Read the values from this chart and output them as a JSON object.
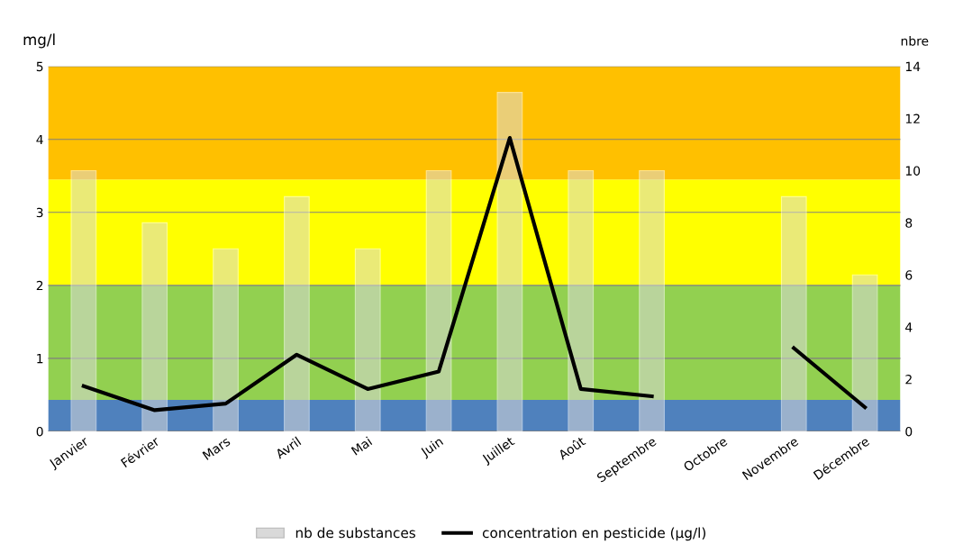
{
  "chart_data": {
    "type": "bar",
    "ylabel": "mg/l",
    "y2label": "nbre",
    "categories": [
      "Janvier",
      "Février",
      "Mars",
      "Avril",
      "Mai",
      "Juin",
      "Juillet",
      "Août",
      "Septembre",
      "Octobre",
      "Novembre",
      "Décembre"
    ],
    "series": [
      {
        "name": "nb de substances",
        "axis": "y2",
        "color": "#d9d9d9",
        "values": [
          10,
          8,
          7,
          9,
          7,
          10,
          13,
          10,
          10,
          null,
          9,
          6
        ]
      },
      {
        "name": "concentration en pesticide (µg/l)",
        "type": "line",
        "axis": "y",
        "color": "#000000",
        "values": [
          0.62,
          0.29,
          0.38,
          1.05,
          0.58,
          0.82,
          4.02,
          0.58,
          0.48,
          null,
          1.14,
          0.33
        ]
      }
    ],
    "ylim": [
      0,
      5
    ],
    "yticks": [
      0,
      1,
      2,
      3,
      4,
      5
    ],
    "y2lim": [
      0,
      14
    ],
    "y2ticks": [
      0,
      2,
      4,
      6,
      8,
      10,
      12,
      14
    ],
    "bands": [
      {
        "axis": "y",
        "from": 0,
        "to": 0.43,
        "color": "#4f81bd"
      },
      {
        "axis": "y",
        "from": 0.43,
        "to": 2,
        "color": "#92d050"
      },
      {
        "axis": "y",
        "from": 2,
        "to": 3.45,
        "color": "#ffff00"
      },
      {
        "axis": "y",
        "from": 3.45,
        "to": 5,
        "color": "#ffc000"
      }
    ],
    "grid": "y",
    "legend": "bottom",
    "line_style": "solid",
    "marker": "none"
  }
}
